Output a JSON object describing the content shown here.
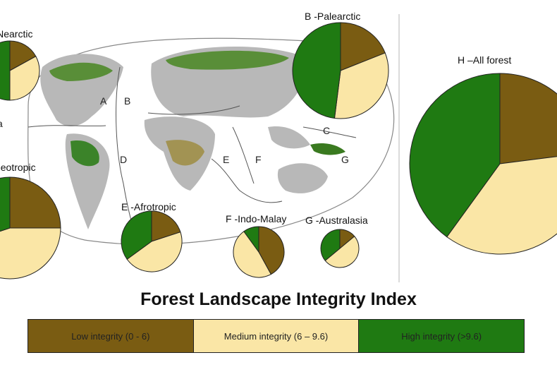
{
  "colors": {
    "low": "#7a5c12",
    "medium": "#fae6a6",
    "high": "#1f7a12",
    "land": "#b8b8b8",
    "ocean_outline": "#888888"
  },
  "region_letters": [
    "A",
    "B",
    "C",
    "D",
    "E",
    "F",
    "G"
  ],
  "chart_data": {
    "type": "pie",
    "title": "Forest Landscape Integrity Index",
    "legend": [
      "Low integrity (0 - 6)",
      "Medium integrity (6 – 9.6)",
      "High integrity (>9.6)"
    ],
    "series_order": [
      "Low integrity",
      "Medium integrity",
      "High integrity"
    ],
    "pies": [
      {
        "label": "A -Nearctic",
        "values": [
          0.17,
          0.33,
          0.5
        ]
      },
      {
        "label": "B -Palearctic",
        "values": [
          0.19,
          0.33,
          0.48
        ]
      },
      {
        "label": "C -Neotropic",
        "values": [
          0.25,
          0.45,
          0.3
        ]
      },
      {
        "label": "E -Afrotropic",
        "values": [
          0.2,
          0.45,
          0.35
        ]
      },
      {
        "label": "F -Indo-Malay",
        "values": [
          0.42,
          0.48,
          0.1
        ]
      },
      {
        "label": "G -Australasia",
        "values": [
          0.14,
          0.5,
          0.36
        ]
      },
      {
        "label": "H –All forest",
        "values": [
          0.23,
          0.37,
          0.4
        ]
      }
    ]
  }
}
